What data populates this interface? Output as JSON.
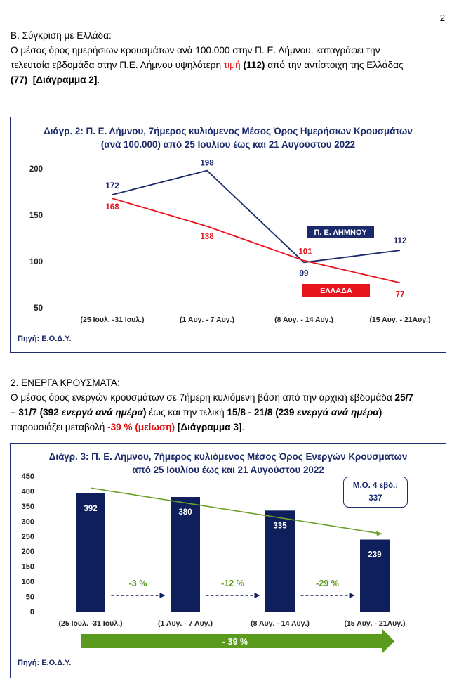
{
  "page_number": "2",
  "section_b": {
    "heading": "Β. Σύγκριση με Ελλάδα:",
    "text_1": "Ο μέσος όρος ημερήσιων κρουσμάτων ανά 100.000 στην Π. Ε. Λήμνου, καταγράφει την",
    "text_2": "τελευταία εβδομάδα στην Π.Ε. Λήμνου υψηλότερη ",
    "red_word": "τιμή",
    "val_lemnos": "(112)",
    "text_3": " από την αντίστοιχη της Ελλάδας",
    "val_greece": "(77)",
    "ref": "[Διάγραμμα 2]",
    "end": "."
  },
  "chart2": {
    "title_line1": "Διάγρ. 2: Π. Ε. Λήμνου, 7ήμερος κυλιόμενος Μέσος Όρος Ημερήσιων Κρουσμάτων",
    "title_line2": "(ανά 100.000) από 25 Ιουλίου έως και 21 Αυγούστου 2022",
    "source": "Πηγή: Ε.Ο.Δ.Υ.",
    "colors": {
      "lemnos": "#1b2a6b",
      "greece": "#e8141c"
    }
  },
  "section_2": {
    "heading": "2. ΕΝΕΡΓΑ ΚΡΟΥΣΜΑΤΑ:",
    "t1": "Ο μέσος όρος ενεργών κρουσμάτων σε 7ήμερη κυλιόμενη βάση από την αρχική εβδομάδα ",
    "b1": "25/7",
    "b2": "– 31/7 (392 ",
    "bi1": "ενεργά ανά ημέρα",
    "b3": ")",
    "t2": " έως και την τελική ",
    "b4": "15/8 - 21/8 (239 ",
    "bi2": "ενεργά  ανά ημέρα",
    "b5": ")",
    "t3": "παρουσιάζει μεταβολή ",
    "red_pct": "-39 % (μείωση)",
    "ref": " [Διάγραμμα 3]",
    "end": "."
  },
  "chart3": {
    "title_line1": "Διάγρ. 3: Π. Ε. Λήμνου, 7ήμερος κυλιόμενος Μέσος Όρος Ενεργών Κρουσμάτων",
    "title_line2": "από 25 Ιουλίου έως και 21 Αυγούστου 2022",
    "avg_label": "Μ.Ο. 4 εβδ.:",
    "avg_value": "337",
    "total_change": "- 39 %",
    "source": "Πηγή: Ε.Ο.Δ.Υ.",
    "colors": {
      "bar": "#0f1f5c",
      "trend": "#6aa12a",
      "arrow": "#5a9a1c"
    }
  },
  "chart_data": [
    {
      "type": "line",
      "categories": [
        "(25 Ιουλ. -31 Ιουλ.)",
        "(1 Αυγ. - 7 Αυγ.)",
        "(8 Αυγ. - 14 Αυγ.)",
        "(15 Αυγ. - 21Αυγ.)"
      ],
      "series": [
        {
          "name": "Π. Ε. ΛΗΜΝΟΥ",
          "values": [
            172,
            198,
            99,
            112
          ]
        },
        {
          "name": "ΕΛΛΑΔΑ",
          "values": [
            168,
            138,
            101,
            77
          ]
        }
      ],
      "yticks": [
        200,
        150,
        100,
        50
      ],
      "ylim": [
        50,
        200
      ],
      "grid": false
    },
    {
      "type": "bar",
      "categories": [
        "(25 Ιουλ. -31 Ιουλ.)",
        "(1 Αυγ. - 7 Αυγ.)",
        "(8 Αυγ. - 14 Αυγ.)",
        "(15 Αυγ. - 21Αυγ.)"
      ],
      "values": [
        392,
        380,
        335,
        239
      ],
      "changes": [
        "-3 %",
        "-12 %",
        "-29 %"
      ],
      "yticks": [
        450,
        400,
        350,
        300,
        250,
        200,
        150,
        100,
        50,
        0
      ],
      "ylim": [
        0,
        450
      ],
      "trend": [
        410,
        258
      ],
      "grid": false
    }
  ]
}
